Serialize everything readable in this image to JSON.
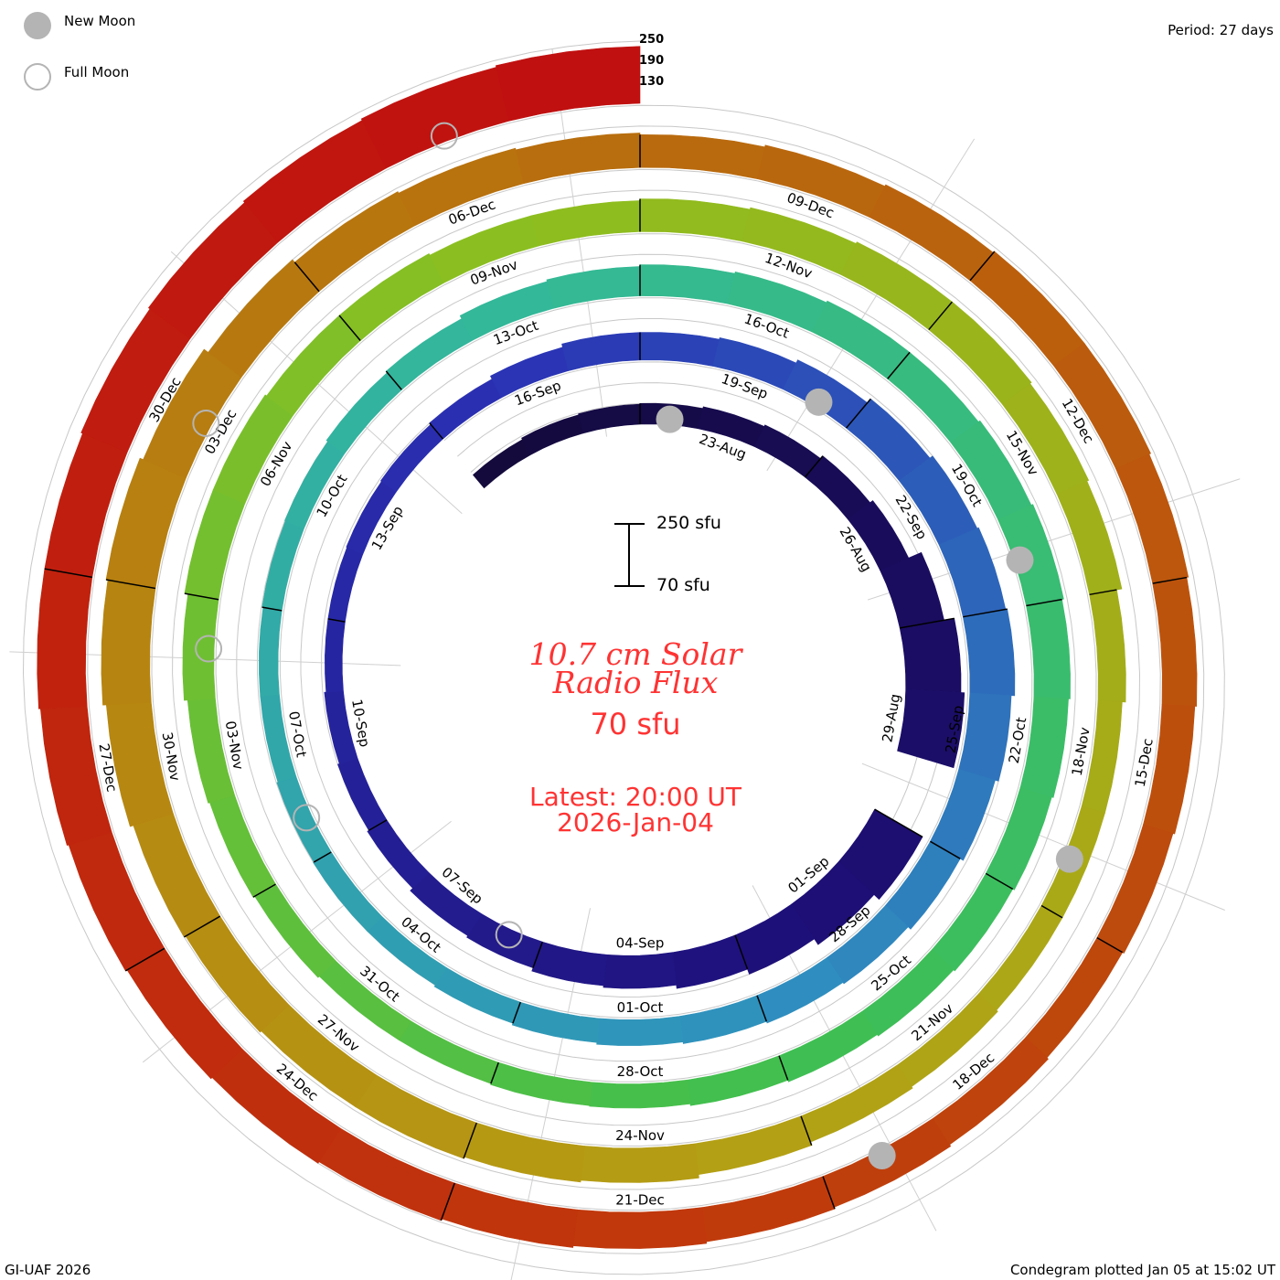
{
  "legend": {
    "new_moon": "New Moon",
    "full_moon": "Full Moon",
    "new_moon_color": "#b4b4b4"
  },
  "period": "Period: 27 days",
  "ring_levels": [
    "250",
    "190",
    "130"
  ],
  "scale_bar": {
    "top": "250 sfu",
    "bottom": "70 sfu"
  },
  "title_line1": "10.7 cm Solar",
  "title_line2": "Radio Flux",
  "baseline": "70 sfu",
  "latest_line1": "Latest: 20:00 UT",
  "latest_line2": "2026-Jan-04",
  "footer_left": "GI-UAF 2026",
  "footer_right": "Condegram plotted Jan 05 at 15:02 UT",
  "chart_data": {
    "type": "bar",
    "layout": "spiral condegram",
    "title": "10.7 cm Solar Radio Flux",
    "units": "sfu",
    "period_days": 27,
    "baseline": 70,
    "scale_max": 250,
    "start_date": "2025-08-20",
    "end_date": "2026-01-04",
    "values": [
      120,
      125,
      128,
      130,
      135,
      140,
      150,
      160,
      200,
      230,
      240,
      null,
      230,
      210,
      190,
      175,
      165,
      160,
      150,
      145,
      135,
      130,
      125,
      120,
      120,
      122,
      125,
      130,
      140,
      150,
      150,
      155,
      165,
      180,
      190,
      195,
      200,
      190,
      180,
      170,
      160,
      155,
      150,
      145,
      140,
      135,
      130,
      130,
      128,
      125,
      125,
      128,
      130,
      135,
      140,
      150,
      155,
      160,
      165,
      170,
      170,
      175,
      180,
      175,
      170,
      165,
      160,
      155,
      150,
      145,
      140,
      138,
      135,
      135,
      140,
      145,
      150,
      160,
      170,
      170,
      165,
      165,
      160,
      160,
      165,
      170,
      175,
      175,
      170,
      165,
      150,
      140,
      140,
      140,
      145,
      150,
      160,
      170,
      175,
      180,
      180,
      185,
      190,
      200,
      210,
      215,
      205,
      190,
      180,
      175,
      170,
      165,
      170,
      175,
      180,
      180,
      175,
      170,
      165,
      160,
      155,
      160,
      165,
      170,
      175,
      180,
      185,
      190,
      195,
      200,
      205,
      210,
      210,
      215,
      220,
      225,
      230,
      235
    ],
    "date_labels": [
      "23-Aug",
      "26-Aug",
      "29-Aug",
      "01-Sep",
      "04-Sep",
      "07-Sep",
      "10-Sep",
      "13-Sep",
      "16-Sep",
      "19-Sep",
      "22-Sep",
      "25-Sep",
      "28-Sep",
      "01-Oct",
      "04-Oct",
      "07-Oct",
      "10-Oct",
      "13-Oct",
      "16-Oct",
      "19-Oct",
      "22-Oct",
      "25-Oct",
      "28-Oct",
      "31-Oct",
      "03-Nov",
      "06-Nov",
      "09-Nov",
      "12-Nov",
      "15-Nov",
      "18-Nov",
      "21-Nov",
      "24-Nov",
      "27-Nov",
      "30-Nov",
      "03-Dec",
      "06-Dec",
      "09-Dec",
      "12-Dec",
      "15-Dec",
      "18-Dec",
      "21-Dec",
      "24-Dec",
      "27-Dec",
      "30-Dec"
    ],
    "new_moons": [
      "2025-08-23",
      "2025-09-21",
      "2025-10-21",
      "2025-11-20",
      "2025-12-20"
    ],
    "full_moons": [
      "2025-09-07",
      "2025-10-07",
      "2025-11-05",
      "2025-12-04",
      "2026-01-03"
    ],
    "colors": [
      "#140a3c",
      "#1e0f78",
      "#2a30b4",
      "#2f8fbf",
      "#33b89a",
      "#3fbf50",
      "#8cbf20",
      "#b4a014",
      "#b8700e",
      "#c03a0c",
      "#c01010"
    ]
  }
}
